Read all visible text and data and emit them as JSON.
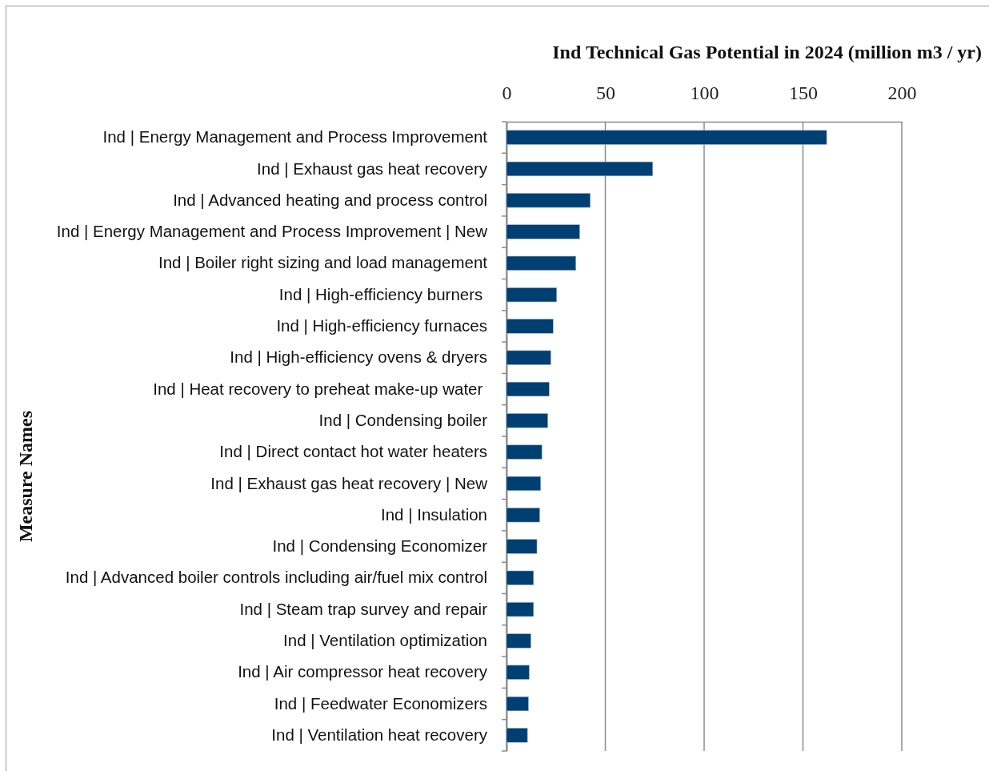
{
  "chart_data": {
    "type": "bar",
    "orientation": "horizontal",
    "title": "Ind Technical Gas Potential in 2024 (million m3 / yr)",
    "ylabel": "Measure Names",
    "categories": [
      "Ind | Energy Management and Process Improvement",
      "Ind | Exhaust gas heat recovery",
      "Ind | Advanced heating and process control",
      "Ind | Energy Management and Process Improvement | New",
      "Ind | Boiler right sizing and load management",
      "Ind | High-efficiency burners ",
      "Ind | High-efficiency furnaces",
      "Ind | High-efficiency ovens & dryers",
      "Ind | Heat recovery to preheat make-up water ",
      "Ind | Condensing boiler",
      "Ind | Direct contact hot water heaters",
      "Ind | Exhaust gas heat recovery | New",
      "Ind | Insulation",
      "Ind | Condensing Economizer",
      "Ind | Advanced boiler controls including air/fuel mix control",
      "Ind | Steam trap survey and repair",
      "Ind | Ventilation optimization",
      "Ind | Air compressor heat recovery",
      "Ind | Feedwater Economizers",
      "Ind | Ventilation heat recovery"
    ],
    "values": [
      162,
      74,
      42.4,
      37,
      35.1,
      25.4,
      23.6,
      22.4,
      21.6,
      20.9,
      17.9,
      17.3,
      16.8,
      15.4,
      13.7,
      13.7,
      12.3,
      11.5,
      11.1,
      10.6
    ],
    "color": "#003f72",
    "xlim": [
      0,
      200
    ],
    "xticks": [
      0,
      50,
      100,
      150,
      200
    ],
    "grid": "x"
  }
}
